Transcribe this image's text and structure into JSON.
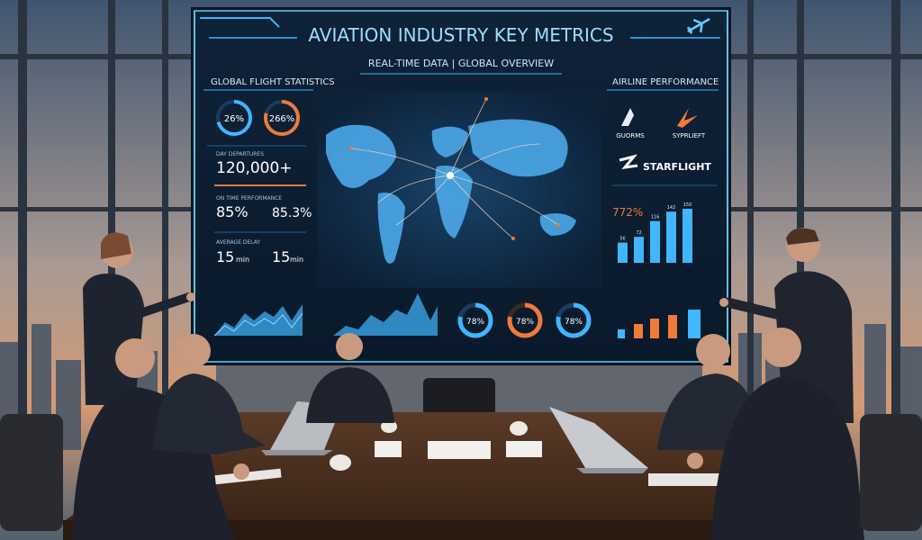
{
  "screen": {
    "title": "AVIATION INDUSTRY KEY METRICS",
    "subtitle": "REAL-TIME DATA | GLOBAL OVERVIEW",
    "left_panel": {
      "heading": "GLOBAL FLIGHT STATISTICS",
      "ring1": "26%",
      "ring2": "266%",
      "stat1_label": "DAY DEPARTURES",
      "stat1_value": "120,000+",
      "stat2_label": "ON TIME PERFORMANCE",
      "stat2_value_a": "85%",
      "stat2_value_b": "85.3%",
      "stat3_label": "AVERAGE DELAY",
      "stat3_value_a": "15",
      "stat3_unit_a": "min",
      "stat3_value_b": "15",
      "stat3_unit_b": "min"
    },
    "right_panel": {
      "heading": "AIRLINE PERFORMANCE",
      "airline1": "GUORMS",
      "airline2": "SYPRLIEFT",
      "airline3": "STARFLIGHT",
      "chart_value": "772%",
      "bar_values": [
        56,
        72,
        116,
        142,
        150
      ]
    },
    "bottom": {
      "donut1": "78%",
      "donut2": "78%",
      "donut3": "78%"
    }
  },
  "colors": {
    "screen_bg": "#0d1f33",
    "accent_blue": "#3fb6ff",
    "accent_orange": "#f07a3a",
    "frame_cyan": "#5fd2ff"
  }
}
